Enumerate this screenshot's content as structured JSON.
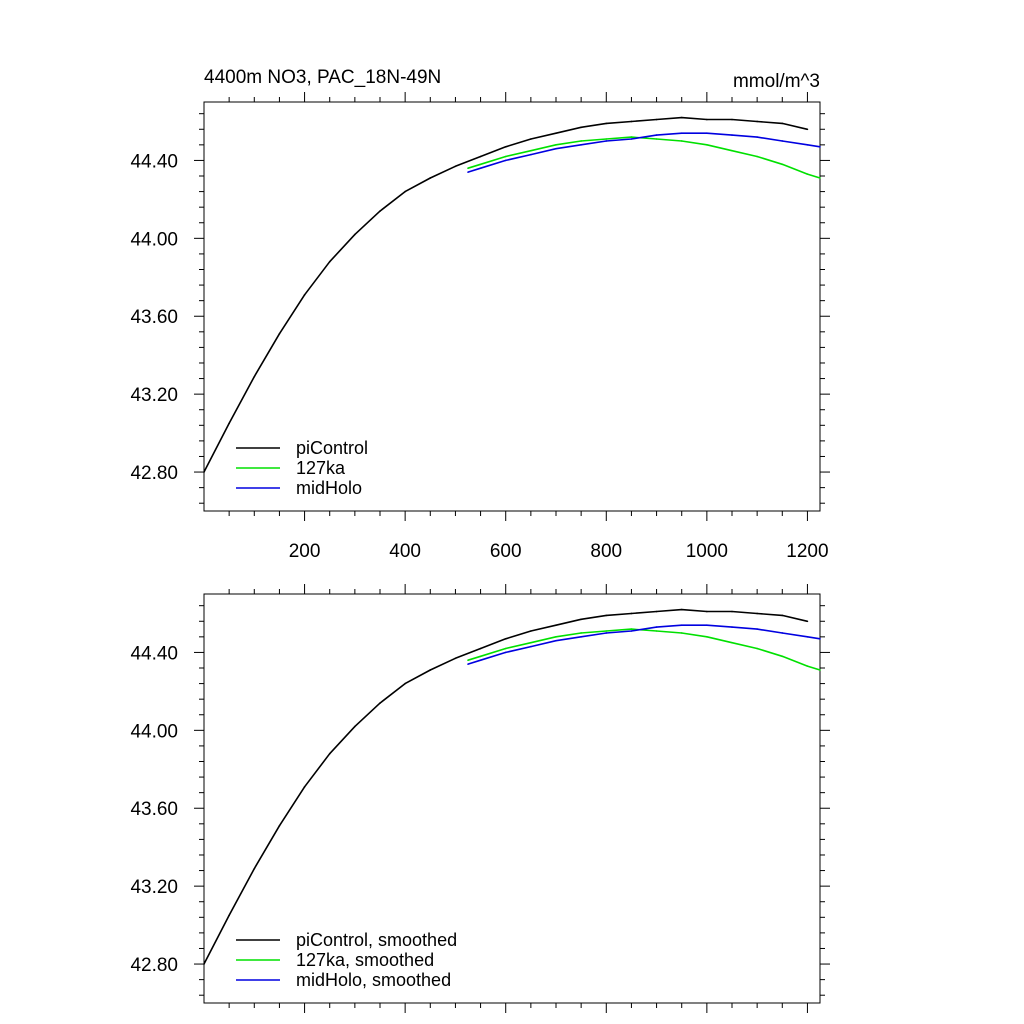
{
  "chart_data": [
    {
      "type": "line",
      "title": "4400m NO3, PAC_18N-49N",
      "units": "mmol/m^3",
      "xlabel": "",
      "ylabel": "",
      "xlim": [
        0,
        1225
      ],
      "ylim": [
        42.6,
        44.7
      ],
      "xticks": [
        200,
        400,
        600,
        800,
        1000,
        1200
      ],
      "xtick_labels": [
        "200",
        "400",
        "600",
        "800",
        "1000",
        "1200"
      ],
      "yticks": [
        42.8,
        43.2,
        43.6,
        44.0,
        44.4
      ],
      "ytick_labels": [
        "42.80",
        "43.20",
        "43.60",
        "44.00",
        "44.40"
      ],
      "grid": false,
      "legend_position": "bottom-left",
      "series": [
        {
          "name": "piControl",
          "color": "#000000",
          "x": [
            0,
            50,
            100,
            150,
            200,
            250,
            300,
            350,
            400,
            450,
            500,
            550,
            600,
            650,
            700,
            750,
            800,
            850,
            900,
            950,
            1000,
            1050,
            1100,
            1150,
            1200
          ],
          "y": [
            42.8,
            43.05,
            43.29,
            43.51,
            43.71,
            43.88,
            44.02,
            44.14,
            44.24,
            44.31,
            44.37,
            44.42,
            44.47,
            44.51,
            44.54,
            44.57,
            44.59,
            44.6,
            44.61,
            44.62,
            44.61,
            44.61,
            44.6,
            44.59,
            44.56
          ]
        },
        {
          "name": "127ka",
          "color": "#00e000",
          "x": [
            525,
            550,
            600,
            650,
            700,
            750,
            800,
            850,
            900,
            950,
            1000,
            1050,
            1100,
            1150,
            1200,
            1225
          ],
          "y": [
            44.36,
            44.38,
            44.42,
            44.45,
            44.48,
            44.5,
            44.51,
            44.52,
            44.51,
            44.5,
            44.48,
            44.45,
            44.42,
            44.38,
            44.33,
            44.31
          ]
        },
        {
          "name": "midHolo",
          "color": "#0000e0",
          "x": [
            525,
            550,
            600,
            650,
            700,
            750,
            800,
            850,
            900,
            950,
            1000,
            1050,
            1100,
            1150,
            1200,
            1225
          ],
          "y": [
            44.34,
            44.36,
            44.4,
            44.43,
            44.46,
            44.48,
            44.5,
            44.51,
            44.53,
            44.54,
            44.54,
            44.53,
            44.52,
            44.5,
            44.48,
            44.47
          ]
        }
      ]
    },
    {
      "type": "line",
      "title": "",
      "xlabel": "",
      "ylabel": "",
      "xlim": [
        0,
        1225
      ],
      "ylim": [
        42.6,
        44.7
      ],
      "xticks": [
        200,
        400,
        600,
        800,
        1000,
        1200
      ],
      "xtick_labels": [],
      "yticks": [
        42.8,
        43.2,
        43.6,
        44.0,
        44.4
      ],
      "ytick_labels": [
        "42.80",
        "43.20",
        "43.60",
        "44.00",
        "44.40"
      ],
      "grid": false,
      "legend_position": "bottom-left",
      "series": [
        {
          "name": "piControl, smoothed",
          "color": "#000000",
          "x": [
            0,
            50,
            100,
            150,
            200,
            250,
            300,
            350,
            400,
            450,
            500,
            550,
            600,
            650,
            700,
            750,
            800,
            850,
            900,
            950,
            1000,
            1050,
            1100,
            1150,
            1200
          ],
          "y": [
            42.8,
            43.05,
            43.29,
            43.51,
            43.71,
            43.88,
            44.02,
            44.14,
            44.24,
            44.31,
            44.37,
            44.42,
            44.47,
            44.51,
            44.54,
            44.57,
            44.59,
            44.6,
            44.61,
            44.62,
            44.61,
            44.61,
            44.6,
            44.59,
            44.56
          ]
        },
        {
          "name": "127ka, smoothed",
          "color": "#00e000",
          "x": [
            525,
            550,
            600,
            650,
            700,
            750,
            800,
            850,
            900,
            950,
            1000,
            1050,
            1100,
            1150,
            1200,
            1225
          ],
          "y": [
            44.36,
            44.38,
            44.42,
            44.45,
            44.48,
            44.5,
            44.51,
            44.52,
            44.51,
            44.5,
            44.48,
            44.45,
            44.42,
            44.38,
            44.33,
            44.31
          ]
        },
        {
          "name": "midHolo, smoothed",
          "color": "#0000e0",
          "x": [
            525,
            550,
            600,
            650,
            700,
            750,
            800,
            850,
            900,
            950,
            1000,
            1050,
            1100,
            1150,
            1200,
            1225
          ],
          "y": [
            44.34,
            44.36,
            44.4,
            44.43,
            44.46,
            44.48,
            44.5,
            44.51,
            44.53,
            44.54,
            44.54,
            44.53,
            44.52,
            44.5,
            44.48,
            44.47
          ]
        }
      ]
    }
  ]
}
